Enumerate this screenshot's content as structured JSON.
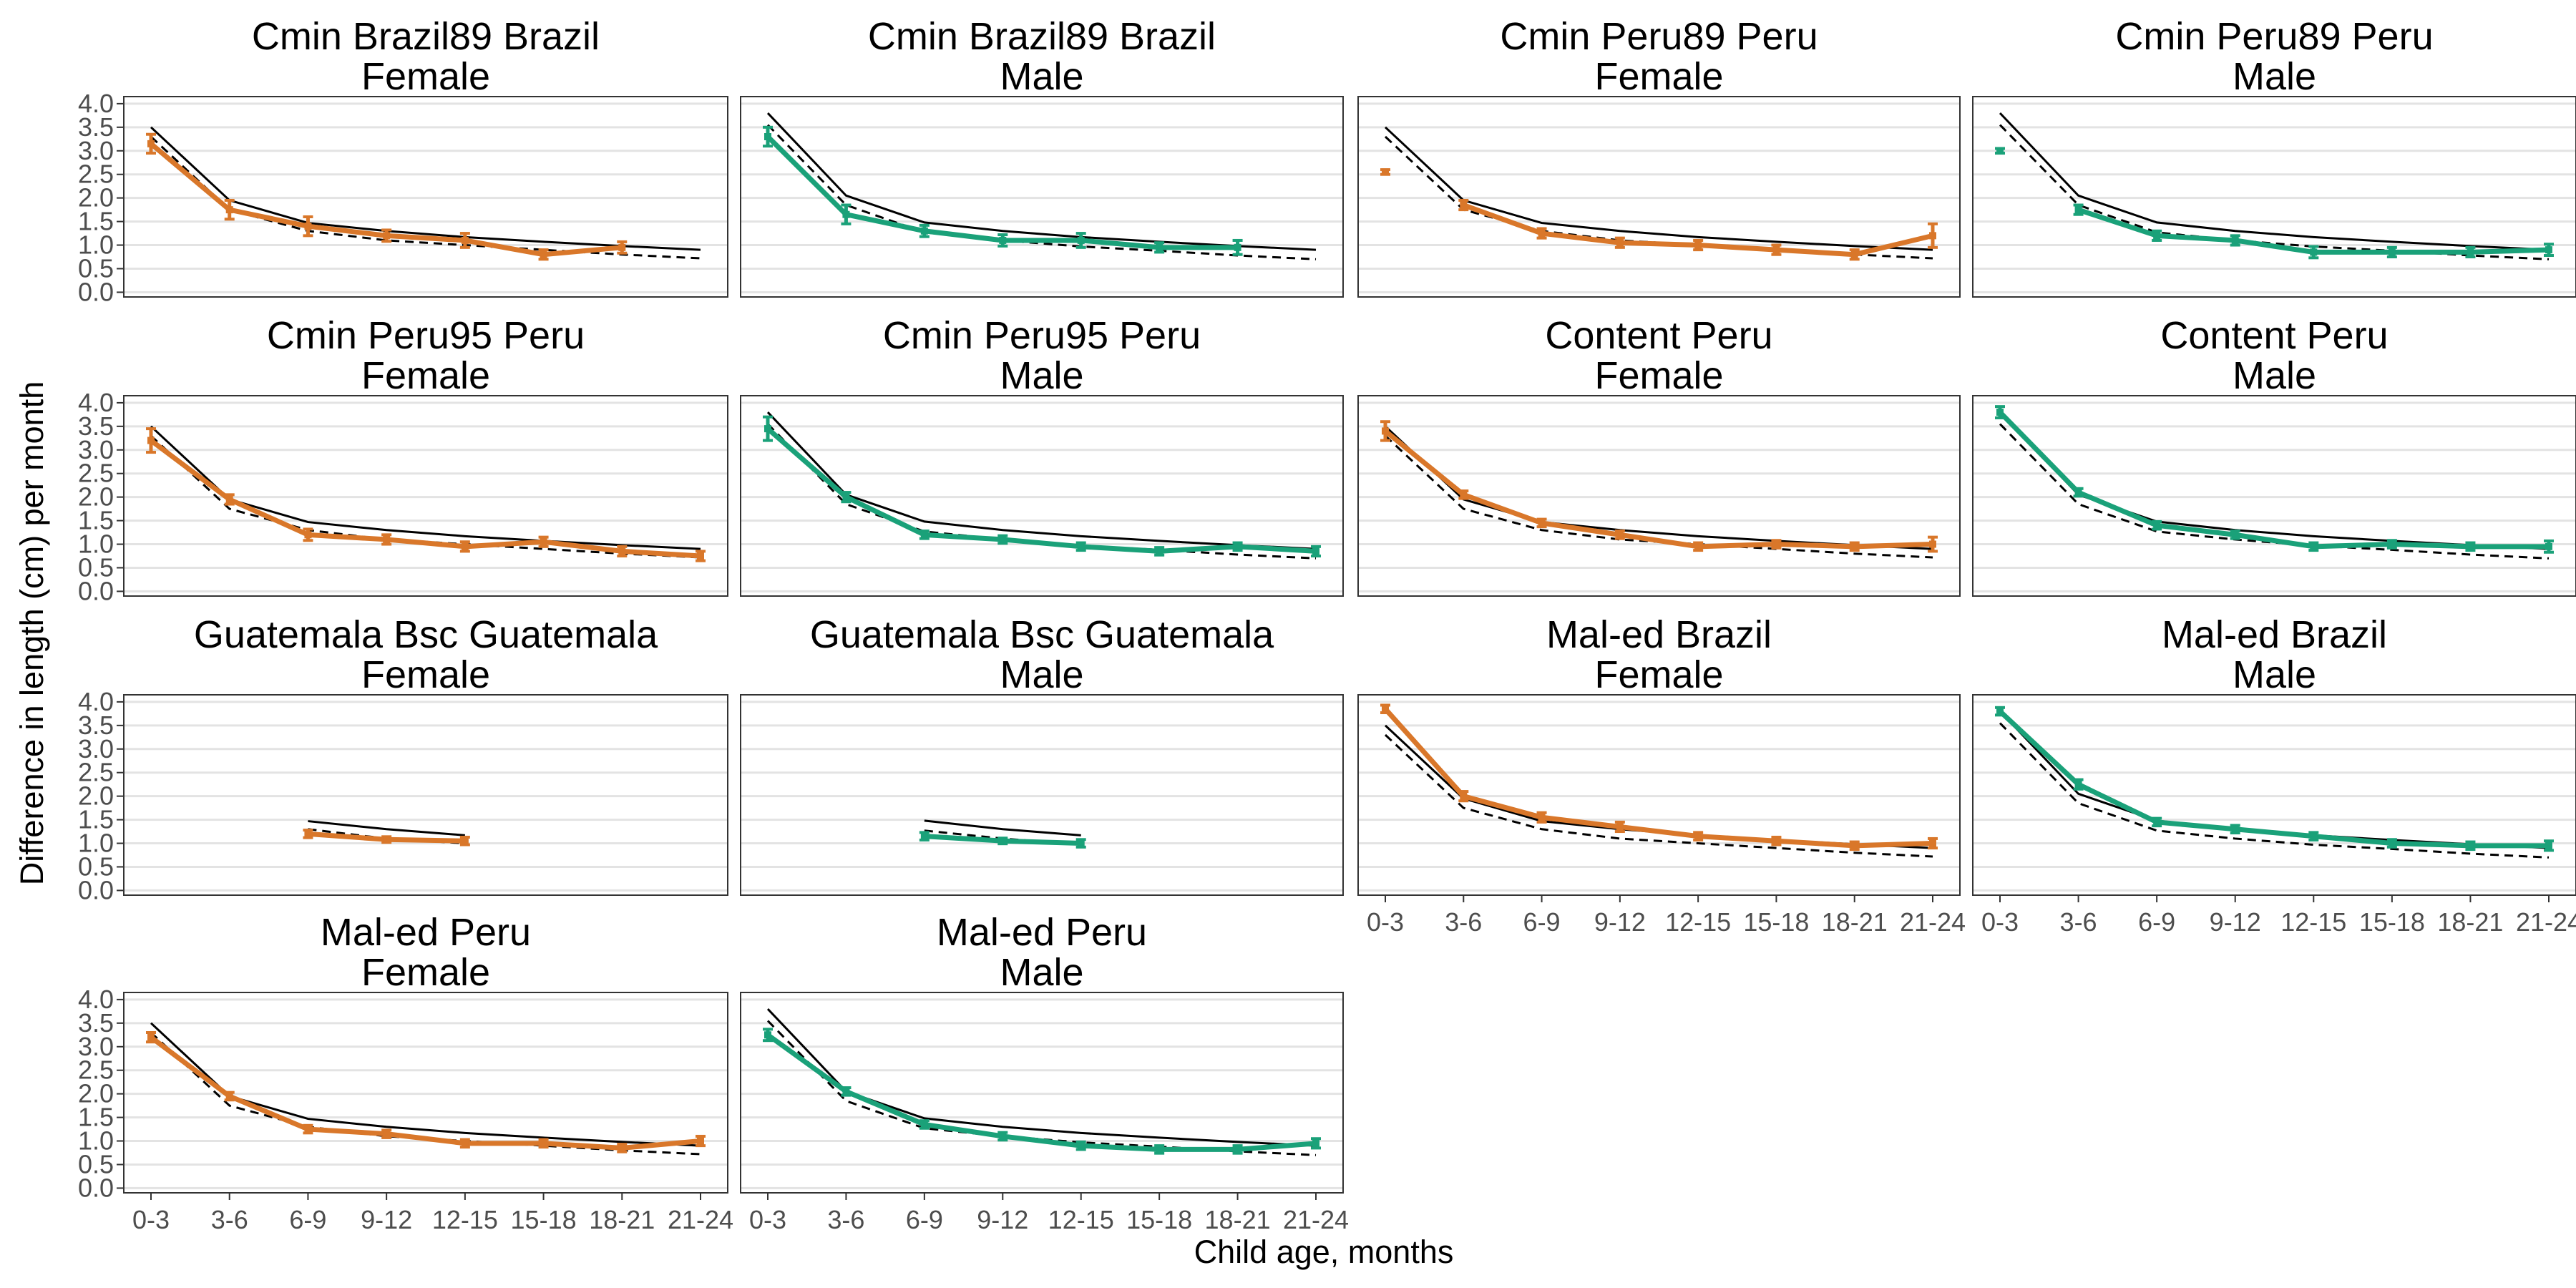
{
  "chart_data": {
    "type": "line",
    "xlabel": "Child age, months",
    "ylabel": "Difference in length (cm) per month",
    "x_categories": [
      "0-3",
      "3-6",
      "6-9",
      "9-12",
      "12-15",
      "15-18",
      "18-21",
      "21-24"
    ],
    "y_ticks": [
      "0.0",
      "0.5",
      "1.0",
      "1.5",
      "2.0",
      "2.5",
      "3.0",
      "3.5",
      "4.0"
    ],
    "ylim": [
      -0.1,
      4.15
    ],
    "grid": true,
    "colors": {
      "female": "#D9772A",
      "male": "#1AA179",
      "reference_solid": "#000000",
      "reference_dashed": "#000000"
    },
    "reference": {
      "female": {
        "solid": [
          3.5,
          1.95,
          1.47,
          1.3,
          1.17,
          1.07,
          0.98,
          0.9
        ],
        "dashed": [
          3.3,
          1.75,
          1.3,
          1.1,
          1.0,
          0.9,
          0.8,
          0.72
        ]
      },
      "male": {
        "solid": [
          3.8,
          2.05,
          1.48,
          1.3,
          1.17,
          1.07,
          0.98,
          0.9
        ],
        "dashed": [
          3.55,
          1.85,
          1.27,
          1.1,
          0.97,
          0.88,
          0.78,
          0.7
        ]
      }
    },
    "panels": [
      {
        "title": [
          "Cmin Brazil89 Brazil",
          "Female"
        ],
        "sex": "female",
        "values": [
          3.15,
          1.75,
          1.4,
          1.2,
          1.1,
          0.8,
          0.95,
          null
        ],
        "errors": [
          0.2,
          0.2,
          0.2,
          0.12,
          0.15,
          0.1,
          0.12,
          null
        ]
      },
      {
        "title": [
          "Cmin Brazil89 Brazil",
          "Male"
        ],
        "sex": "male",
        "values": [
          3.3,
          1.65,
          1.3,
          1.1,
          1.1,
          0.95,
          0.95,
          null
        ],
        "errors": [
          0.2,
          0.2,
          0.12,
          0.12,
          0.15,
          0.1,
          0.15,
          null
        ]
      },
      {
        "title": [
          "Cmin Peru89 Peru",
          "Female"
        ],
        "sex": "female",
        "values": [
          2.55,
          1.85,
          1.25,
          1.05,
          1.0,
          0.9,
          0.8,
          1.2
        ],
        "errors": [
          0.05,
          0.1,
          0.1,
          0.1,
          0.1,
          0.1,
          0.1,
          0.25
        ],
        "isolated_first": true
      },
      {
        "title": [
          "Cmin Peru89 Peru",
          "Male"
        ],
        "sex": "male",
        "values": [
          3.0,
          1.75,
          1.2,
          1.1,
          0.85,
          0.85,
          0.85,
          0.9
        ],
        "errors": [
          0.05,
          0.1,
          0.1,
          0.1,
          0.12,
          0.1,
          0.1,
          0.12
        ],
        "isolated_first": true
      },
      {
        "title": [
          "Cmin Peru95 Peru",
          "Female"
        ],
        "sex": "female",
        "values": [
          3.2,
          1.95,
          1.2,
          1.1,
          0.95,
          1.05,
          0.85,
          0.75
        ],
        "errors": [
          0.25,
          0.1,
          0.12,
          0.1,
          0.1,
          0.1,
          0.1,
          0.1
        ]
      },
      {
        "title": [
          "Cmin Peru95 Peru",
          "Male"
        ],
        "sex": "male",
        "values": [
          3.45,
          2.0,
          1.2,
          1.1,
          0.95,
          0.85,
          0.95,
          0.85
        ],
        "errors": [
          0.25,
          0.1,
          0.08,
          0.08,
          0.08,
          0.08,
          0.08,
          0.1
        ]
      },
      {
        "title": [
          "Content Peru",
          "Female"
        ],
        "sex": "female",
        "values": [
          3.4,
          2.05,
          1.45,
          1.2,
          0.95,
          1.0,
          0.95,
          1.0
        ],
        "errors": [
          0.2,
          0.08,
          0.08,
          0.08,
          0.08,
          0.08,
          0.08,
          0.15
        ]
      },
      {
        "title": [
          "Content Peru",
          "Male"
        ],
        "sex": "male",
        "values": [
          3.8,
          2.1,
          1.4,
          1.2,
          0.95,
          1.0,
          0.95,
          0.95
        ],
        "errors": [
          0.12,
          0.08,
          0.08,
          0.08,
          0.08,
          0.08,
          0.08,
          0.12
        ]
      },
      {
        "title": [
          "Guatemala Bsc Guatemala",
          "Female"
        ],
        "sex": "female",
        "values": [
          null,
          null,
          1.2,
          1.08,
          1.05,
          null,
          null,
          null
        ],
        "errors": [
          null,
          null,
          0.08,
          0.06,
          0.08,
          null,
          null,
          null
        ],
        "ref_range": [
          2,
          4
        ]
      },
      {
        "title": [
          "Guatemala Bsc Guatemala",
          "Male"
        ],
        "sex": "male",
        "values": [
          null,
          null,
          1.15,
          1.05,
          1.0,
          null,
          null,
          null
        ],
        "errors": [
          null,
          null,
          0.08,
          0.06,
          0.08,
          null,
          null,
          null
        ],
        "ref_range": [
          2,
          4
        ]
      },
      {
        "title": [
          "Mal-ed Brazil",
          "Female"
        ],
        "sex": "female",
        "values": [
          3.85,
          2.0,
          1.55,
          1.35,
          1.15,
          1.05,
          0.95,
          1.0
        ],
        "errors": [
          0.08,
          0.1,
          0.1,
          0.1,
          0.08,
          0.08,
          0.08,
          0.1
        ]
      },
      {
        "title": [
          "Mal-ed Brazil",
          "Male"
        ],
        "sex": "male",
        "values": [
          3.8,
          2.25,
          1.45,
          1.3,
          1.15,
          1.0,
          0.95,
          0.95
        ],
        "errors": [
          0.08,
          0.1,
          0.08,
          0.08,
          0.08,
          0.08,
          0.08,
          0.1
        ]
      },
      {
        "title": [
          "Mal-ed Peru",
          "Female"
        ],
        "sex": "female",
        "values": [
          3.2,
          1.95,
          1.25,
          1.15,
          0.95,
          0.95,
          0.85,
          1.0
        ],
        "errors": [
          0.1,
          0.08,
          0.08,
          0.08,
          0.08,
          0.08,
          0.08,
          0.1
        ]
      },
      {
        "title": [
          "Mal-ed Peru",
          "Male"
        ],
        "sex": "male",
        "values": [
          3.25,
          2.05,
          1.35,
          1.1,
          0.9,
          0.82,
          0.82,
          0.95
        ],
        "errors": [
          0.12,
          0.08,
          0.08,
          0.08,
          0.08,
          0.08,
          0.08,
          0.1
        ]
      }
    ]
  }
}
